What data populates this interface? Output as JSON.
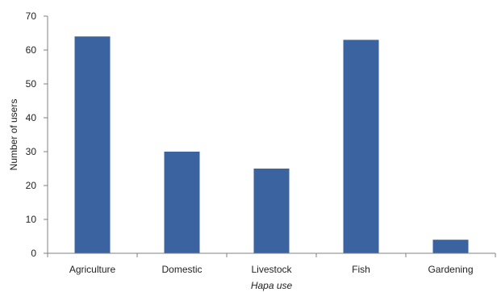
{
  "chart_data": {
    "type": "bar",
    "title": "",
    "xlabel": "Hapa use",
    "ylabel": "Number of users",
    "categories": [
      "Agriculture",
      "Domestic",
      "Livestock",
      "Fish",
      "Gardening"
    ],
    "values": [
      64,
      30,
      25,
      63,
      4
    ],
    "ylim": [
      0,
      70
    ],
    "yticks": [
      0,
      10,
      20,
      30,
      40,
      50,
      60,
      70
    ],
    "grid": false,
    "bar_color": "#3a63a0",
    "axis_color": "#808080"
  }
}
